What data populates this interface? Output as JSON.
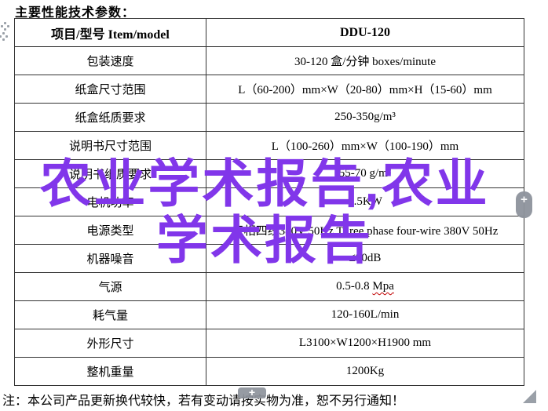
{
  "page": {
    "title": "主要性能技术参数："
  },
  "table": {
    "header": {
      "label": "项目/型号 Item/model",
      "value": "DDU-120"
    },
    "rows": [
      {
        "label": "包装速度",
        "value": "30-120 盒/分钟 boxes/minute"
      },
      {
        "label": "纸盒尺寸范围",
        "value": "L（60-200）mm×W（20-80）mm×H（15-60）mm"
      },
      {
        "label": "纸盒纸质要求",
        "value": "250-350g/m³"
      },
      {
        "label": "说明书尺寸范围",
        "value": "L（100-260）mm×W（100-190）mm"
      },
      {
        "label": "说明书纸质要求",
        "value": "55-70 g/m²"
      },
      {
        "label": "电机功率",
        "value": "4.5KW"
      },
      {
        "label": "电源类型",
        "value": "三相四线380V 50Hz Three phase four-wire 380V 50Hz"
      },
      {
        "label": "机器噪音",
        "value": "≤80dB"
      },
      {
        "label": "气源",
        "value": "0.5-0.8 Mpa",
        "misspelled": "Mpa"
      },
      {
        "label": "耗气量",
        "value": "120-160L/min"
      },
      {
        "label": "外形尺寸",
        "value": "L3100×W1200×H1900 mm"
      },
      {
        "label": "整机重量",
        "value": "1200Kg"
      }
    ]
  },
  "note": "注：本公司产品更新换代较快，若有变动请按实物为准，恕不另行通知！",
  "watermark": {
    "line1": "农业学术报告,农业",
    "line2": "学术报告",
    "color": "#8136ea"
  },
  "controls": {
    "insert_plus_right": "+",
    "insert_plus_bottom": "+"
  },
  "colors": {
    "watermark": "#8136ea",
    "spellcheck_underline": "#c00000",
    "control_gray": "#8e939c"
  }
}
